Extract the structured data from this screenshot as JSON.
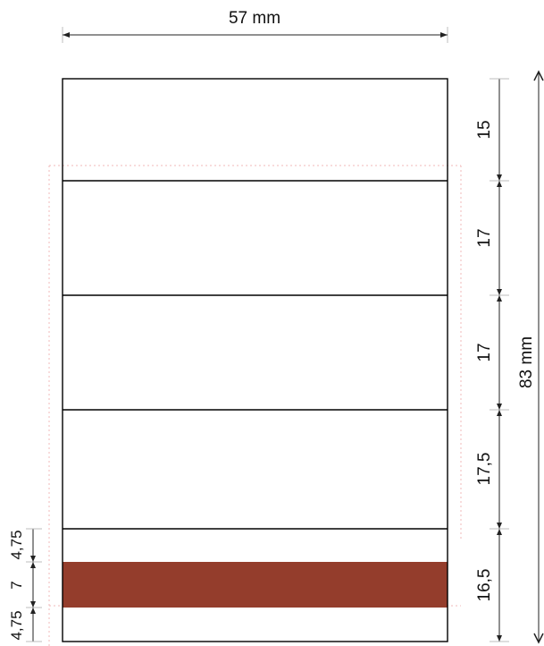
{
  "width_label": "57 mm",
  "height_label": "83 mm",
  "sections": [
    {
      "value": 15,
      "label": "15"
    },
    {
      "value": 17,
      "label": "17"
    },
    {
      "value": 17,
      "label": "17"
    },
    {
      "value": 17.5,
      "label": "17,5"
    },
    {
      "value": 16.5,
      "label": "16,5"
    }
  ],
  "bottom_parts": [
    {
      "value": 4.75,
      "label": "4,75"
    },
    {
      "value": 7,
      "label": "7"
    },
    {
      "value": 4.75,
      "label": "4,75"
    }
  ],
  "colors": {
    "band": "#943d2c",
    "outline": "#000000",
    "guide": "#f0b8b8"
  }
}
